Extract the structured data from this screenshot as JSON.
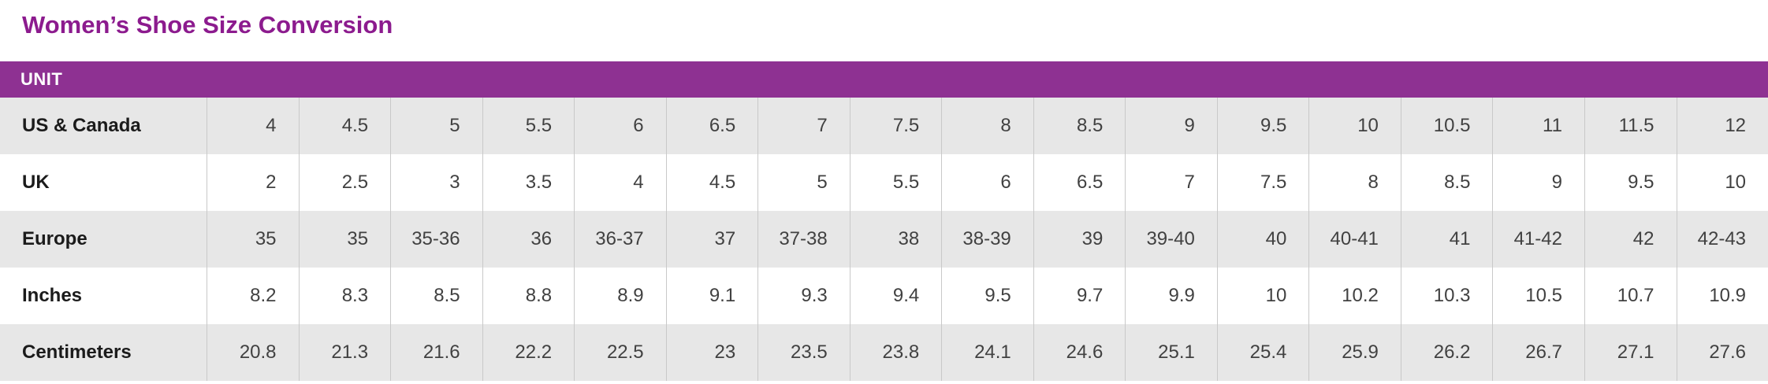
{
  "page": {
    "title": "Women’s Shoe Size Conversion"
  },
  "colors": {
    "title_purple": "#8c1b8e",
    "header_bar_purple": "#8e3192",
    "row_alt_gray": "#e7e7e7",
    "divider_gray": "#c9c9c9",
    "label_text": "#1b1b1b",
    "value_text": "#414141"
  },
  "chart_data": {
    "type": "table",
    "title": "Women’s Shoe Size Conversion",
    "columns_header": "UNIT",
    "rows": [
      {
        "label": "US & Canada",
        "values": [
          "4",
          "4.5",
          "5",
          "5.5",
          "6",
          "6.5",
          "7",
          "7.5",
          "8",
          "8.5",
          "9",
          "9.5",
          "10",
          "10.5",
          "11",
          "11.5",
          "12"
        ]
      },
      {
        "label": "UK",
        "values": [
          "2",
          "2.5",
          "3",
          "3.5",
          "4",
          "4.5",
          "5",
          "5.5",
          "6",
          "6.5",
          "7",
          "7.5",
          "8",
          "8.5",
          "9",
          "9.5",
          "10"
        ]
      },
      {
        "label": "Europe",
        "values": [
          "35",
          "35",
          "35-36",
          "36",
          "36-37",
          "37",
          "37-38",
          "38",
          "38-39",
          "39",
          "39-40",
          "40",
          "40-41",
          "41",
          "41-42",
          "42",
          "42-43"
        ]
      },
      {
        "label": "Inches",
        "values": [
          "8.2",
          "8.3",
          "8.5",
          "8.8",
          "8.9",
          "9.1",
          "9.3",
          "9.4",
          "9.5",
          "9.7",
          "9.9",
          "10",
          "10.2",
          "10.3",
          "10.5",
          "10.7",
          "10.9"
        ]
      },
      {
        "label": "Centimeters",
        "values": [
          "20.8",
          "21.3",
          "21.6",
          "22.2",
          "22.5",
          "23",
          "23.5",
          "23.8",
          "24.1",
          "24.6",
          "25.1",
          "25.4",
          "25.9",
          "26.2",
          "26.7",
          "27.1",
          "27.6"
        ]
      }
    ]
  }
}
